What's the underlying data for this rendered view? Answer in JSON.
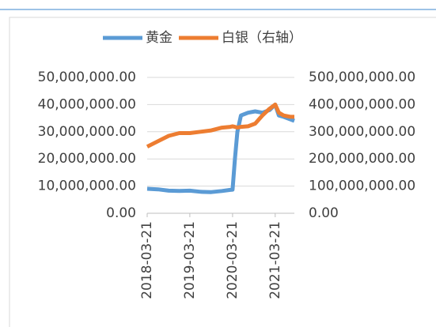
{
  "chart_data": {
    "type": "line",
    "x": [
      "2018-03-21",
      "2018-06-21",
      "2018-09-21",
      "2018-12-21",
      "2019-03-21",
      "2019-06-21",
      "2019-09-21",
      "2019-12-21",
      "2020-03-01",
      "2020-03-21",
      "2020-04-10",
      "2020-05-01",
      "2020-06-01",
      "2020-08-01",
      "2020-10-01",
      "2020-12-01",
      "2021-02-01",
      "2021-03-21",
      "2021-04-21",
      "2021-06-01",
      "2021-08-01",
      "2021-09-01"
    ],
    "xlim": [
      "2018-03-21",
      "2021-09-01"
    ],
    "xticks": [
      "2018-03-21",
      "2019-03-21",
      "2020-03-21",
      "2021-03-21"
    ],
    "series": [
      {
        "name": "黄金",
        "color": "#5b9bd5",
        "values": [
          9000000,
          8800000,
          8300000,
          8200000,
          8300000,
          7900000,
          7800000,
          8200000,
          8600000,
          8700000,
          20000000,
          30000000,
          36000000,
          37000000,
          37500000,
          37000000,
          38000000,
          40000000,
          36000000,
          35500000,
          34500000,
          34000000
        ]
      },
      {
        "name": "白银（右轴）",
        "color": "#ed7d31",
        "axis": "y2",
        "values": [
          245000000,
          265000000,
          285000000,
          295000000,
          295000000,
          300000000,
          305000000,
          315000000,
          318000000,
          320000000,
          318000000,
          315000000,
          318000000,
          320000000,
          330000000,
          360000000,
          385000000,
          400000000,
          370000000,
          360000000,
          355000000,
          355000000
        ]
      }
    ],
    "ylim": [
      0,
      50000000
    ],
    "yticks": [
      {
        "value": 0,
        "label": "0.00"
      },
      {
        "value": 10000000,
        "label": "10,000,000.00"
      },
      {
        "value": 20000000,
        "label": "20,000,000.00"
      },
      {
        "value": 30000000,
        "label": "30,000,000.00"
      },
      {
        "value": 40000000,
        "label": "40,000,000.00"
      },
      {
        "value": 50000000,
        "label": "50,000,000.00"
      }
    ],
    "y2lim": [
      0,
      500000000
    ],
    "y2ticks": [
      {
        "value": 0,
        "label": "0.00"
      },
      {
        "value": 100000000,
        "label": "100,000,000.00"
      },
      {
        "value": 200000000,
        "label": "200,000,000.00"
      },
      {
        "value": 300000000,
        "label": "300,000,000.00"
      },
      {
        "value": 400000000,
        "label": "400,000,000.00"
      },
      {
        "value": 500000000,
        "label": "500,000,000.00"
      }
    ],
    "grid": true,
    "legend": "top"
  }
}
